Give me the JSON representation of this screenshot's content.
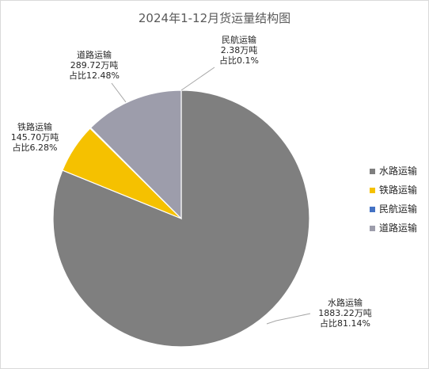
{
  "chart_data": {
    "type": "pie",
    "title": "2024年1-12月货运量结构图",
    "legend_position": "right",
    "categories": [
      "水路运输",
      "铁路运输",
      "民航运输",
      "道路运输"
    ],
    "values": [
      1883.22,
      145.7,
      2.38,
      289.72
    ],
    "units": "万吨",
    "value_labels": [
      "1883.22万吨",
      "145.70万吨",
      "2.38万吨",
      "289.72万吨"
    ],
    "percent_labels": [
      "占比81.14%",
      "占比6.28%",
      "占比0.1%",
      "占比12.48%"
    ],
    "colors": [
      "#7f7f7f",
      "#f5c100",
      "#4472c4",
      "#9d9dab"
    ]
  }
}
